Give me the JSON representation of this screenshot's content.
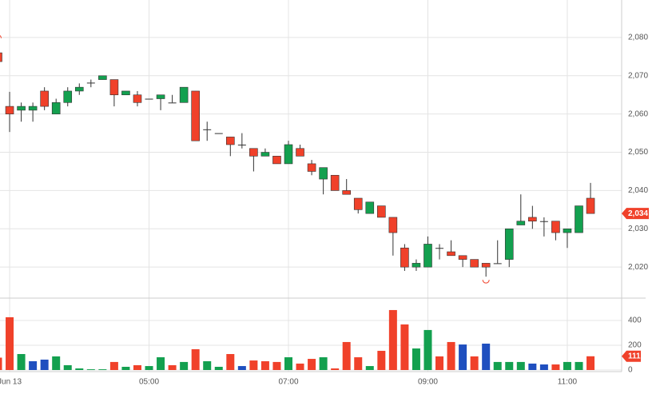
{
  "chart_data": {
    "type": "candlestick",
    "categories": [
      null,
      "Jun 13",
      null,
      null,
      null,
      null,
      null,
      null,
      null,
      null,
      null,
      null,
      null,
      "05:00",
      null,
      null,
      null,
      null,
      null,
      null,
      null,
      null,
      null,
      null,
      null,
      "07:00",
      null,
      null,
      null,
      null,
      null,
      null,
      null,
      null,
      null,
      null,
      null,
      "09:00",
      null,
      null,
      null,
      null,
      null,
      null,
      null,
      null,
      null,
      null,
      null,
      "11:00",
      null,
      null
    ],
    "open": [
      2076,
      2062,
      2061,
      2061,
      2066,
      2060,
      2063,
      2066,
      2068,
      2069,
      2069,
      2065,
      2065,
      2064,
      2064,
      2063,
      2063,
      2066,
      2056,
      2055,
      2054,
      2052,
      2051,
      2049,
      2049,
      2047,
      2051,
      2047,
      2043,
      2044,
      2040,
      2038,
      2034,
      2036,
      2033,
      2025,
      2020,
      2020,
      2025,
      2024,
      2023,
      2022,
      2021,
      2021,
      2022,
      2031,
      2033,
      2032,
      2032,
      2029,
      2029,
      2038
    ],
    "high": [
      2079,
      2065.8,
      2063,
      2063,
      2067,
      2064,
      2067,
      2068,
      2069,
      2070,
      2069,
      2066,
      2066,
      2064,
      2065,
      2065,
      2067,
      2066,
      2058,
      2055,
      2054,
      2055,
      2051,
      2051,
      2049,
      2053,
      2052,
      2048,
      2046,
      2044,
      2043,
      2038,
      2037,
      2036,
      2033,
      2026,
      2022,
      2028,
      2026,
      2027,
      2023,
      2022,
      2021,
      2027,
      2030,
      2039,
      2036,
      2033,
      2032,
      2030,
      2036,
      2042
    ],
    "low": [
      2073,
      2055.3,
      2058,
      2058,
      2061,
      2060,
      2062,
      2065,
      2067,
      2069,
      2062,
      2065,
      2062,
      2064,
      2061,
      2063,
      2063,
      2053,
      2053,
      2055,
      2049,
      2051,
      2045,
      2049,
      2047,
      2047,
      2049,
      2044,
      2039,
      2040,
      2039,
      2034,
      2034,
      2033,
      2023,
      2019,
      2019,
      2020,
      2022,
      2023,
      2020,
      2020,
      2017.5,
      2021,
      2020,
      2031,
      2030,
      2028,
      2027,
      2025,
      2029,
      2034
    ],
    "close": [
      2073.7,
      2060,
      2062,
      2062,
      2062,
      2063,
      2066,
      2067,
      2068.2,
      2070,
      2065,
      2066,
      2063,
      2064,
      2065,
      2063,
      2067,
      2053,
      2056,
      2055,
      2052,
      2052,
      2049,
      2050,
      2047,
      2052,
      2049,
      2045,
      2046,
      2040,
      2039,
      2035,
      2037,
      2033,
      2029,
      2020,
      2021,
      2026,
      2025,
      2023,
      2022,
      2020,
      2020,
      2021,
      2030,
      2032,
      2032,
      2032,
      2029,
      2030,
      2036,
      2034
    ],
    "up_color": "#13a04f",
    "down_color": "#f0412a",
    "volume": [
      100,
      426,
      129,
      71,
      84,
      110,
      39,
      13,
      6,
      6,
      65,
      26,
      39,
      32,
      103,
      39,
      65,
      168,
      71,
      26,
      129,
      32,
      77,
      71,
      65,
      103,
      52,
      90,
      103,
      13,
      226,
      103,
      32,
      155,
      484,
      368,
      174,
      323,
      110,
      226,
      206,
      110,
      213,
      65,
      65,
      65,
      52,
      45,
      45,
      65,
      65,
      111
    ],
    "volume_colors": [
      "#f0412a",
      "#f0412a",
      "#13a04f",
      "#1f4fbf",
      "#1f4fbf",
      "#13a04f",
      "#13a04f",
      "#13a04f",
      "#13a04f",
      "#13a04f",
      "#f0412a",
      "#13a04f",
      "#f0412a",
      "#13a04f",
      "#13a04f",
      "#f0412a",
      "#13a04f",
      "#f0412a",
      "#13a04f",
      "#13a04f",
      "#f0412a",
      "#1f4fbf",
      "#f0412a",
      "#f0412a",
      "#f0412a",
      "#13a04f",
      "#f0412a",
      "#f0412a",
      "#13a04f",
      "#f0412a",
      "#f0412a",
      "#f0412a",
      "#13a04f",
      "#f0412a",
      "#f0412a",
      "#f0412a",
      "#13a04f",
      "#13a04f",
      "#f0412a",
      "#f0412a",
      "#1f4fbf",
      "#f0412a",
      "#1f4fbf",
      "#13a04f",
      "#13a04f",
      "#13a04f",
      "#1f4fbf",
      "#1f4fbf",
      "#f0412a",
      "#13a04f",
      "#13a04f",
      "#f0412a"
    ],
    "ylim": [
      2012.1,
      2089.8
    ],
    "yticks": [
      {
        "value": 2020,
        "label": "2,020"
      },
      {
        "value": 2030,
        "label": "2,030"
      },
      {
        "value": 2040,
        "label": "2,040"
      },
      {
        "value": 2050,
        "label": "2,050"
      },
      {
        "value": 2060,
        "label": "2,060"
      },
      {
        "value": 2070,
        "label": "2,070"
      },
      {
        "value": 2080,
        "label": "2,080"
      }
    ],
    "volume_ylim": [
      0,
      574
    ],
    "volume_yticks": [
      0,
      200,
      400
    ],
    "last_price": {
      "value": 2034,
      "label": "2,034"
    },
    "last_volume": 111,
    "grid": true,
    "high_low_markers": true
  }
}
